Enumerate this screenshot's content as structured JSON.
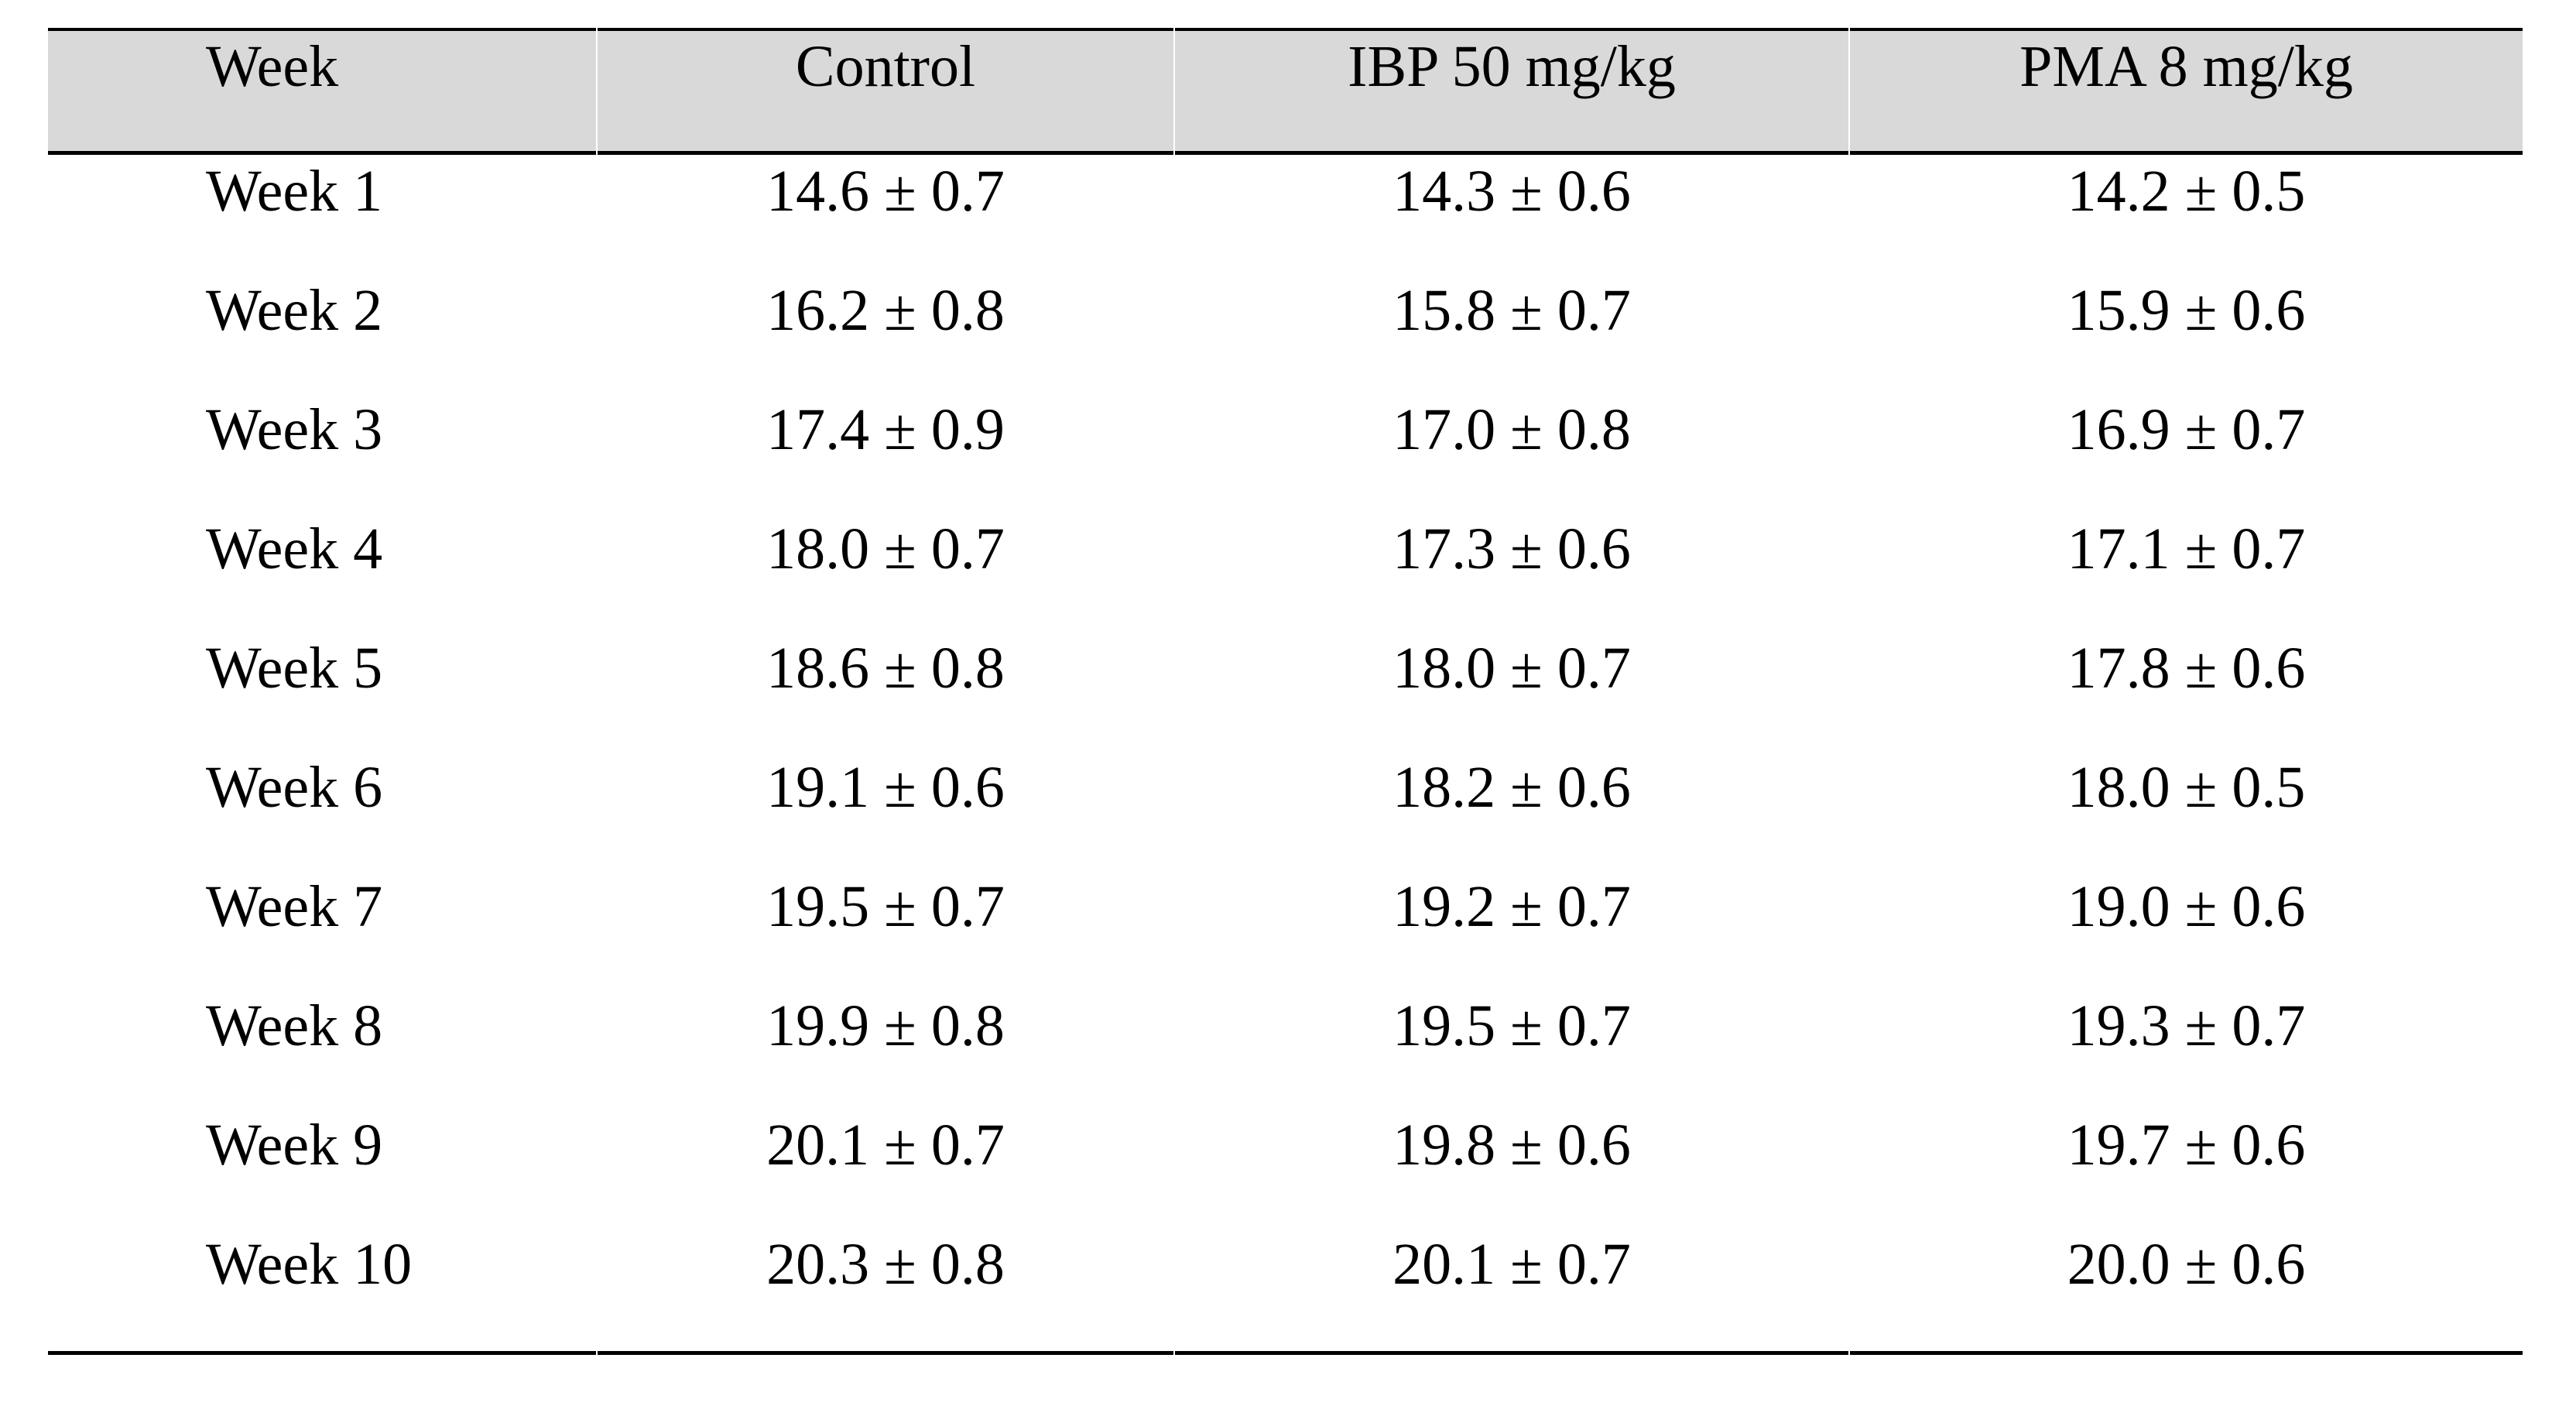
{
  "table": {
    "columns": [
      "Week",
      "Control",
      "IBP 50 mg/kg",
      "PMA 8 mg/kg"
    ],
    "rows": [
      [
        "Week 1",
        "14.6 ± 0.7",
        "14.3 ± 0.6",
        "14.2 ± 0.5"
      ],
      [
        "Week 2",
        "16.2 ± 0.8",
        "15.8 ± 0.7",
        "15.9 ± 0.6"
      ],
      [
        "Week 3",
        "17.4 ± 0.9",
        "17.0 ± 0.8",
        "16.9 ± 0.7"
      ],
      [
        "Week 4",
        "18.0 ± 0.7",
        "17.3 ± 0.6",
        "17.1 ± 0.7"
      ],
      [
        "Week 5",
        "18.6 ± 0.8",
        "18.0 ± 0.7",
        "17.8 ± 0.6"
      ],
      [
        "Week 6",
        "19.1 ± 0.6",
        "18.2 ± 0.6",
        "18.0 ± 0.5"
      ],
      [
        "Week 7",
        "19.5 ± 0.7",
        "19.2 ± 0.7",
        "19.0 ± 0.6"
      ],
      [
        "Week 8",
        "19.9 ± 0.8",
        "19.5 ± 0.7",
        "19.3 ± 0.7"
      ],
      [
        "Week 9",
        "20.1 ± 0.7",
        "19.8 ± 0.6",
        "19.7 ± 0.6"
      ],
      [
        "Week 10",
        "20.3 ± 0.8",
        "20.1 ± 0.7",
        "20.0 ± 0.6"
      ]
    ],
    "colors": {
      "header_bg": "#d9d9d9",
      "border": "#000000",
      "text": "#000000",
      "page_bg": "#ffffff"
    }
  },
  "chart_data": {
    "type": "table",
    "categories": [
      "Week 1",
      "Week 2",
      "Week 3",
      "Week 4",
      "Week 5",
      "Week 6",
      "Week 7",
      "Week 8",
      "Week 9",
      "Week 10"
    ],
    "series": [
      {
        "name": "Control",
        "mean": [
          14.6,
          16.2,
          17.4,
          18.0,
          18.6,
          19.1,
          19.5,
          19.9,
          20.1,
          20.3
        ],
        "sd": [
          0.7,
          0.8,
          0.9,
          0.7,
          0.8,
          0.6,
          0.7,
          0.8,
          0.7,
          0.8
        ]
      },
      {
        "name": "IBP 50 mg/kg",
        "mean": [
          14.3,
          15.8,
          17.0,
          17.3,
          18.0,
          18.2,
          19.2,
          19.5,
          19.8,
          20.1
        ],
        "sd": [
          0.6,
          0.7,
          0.8,
          0.6,
          0.7,
          0.6,
          0.7,
          0.7,
          0.6,
          0.7
        ]
      },
      {
        "name": "PMA 8 mg/kg",
        "mean": [
          14.2,
          15.9,
          16.9,
          17.1,
          17.8,
          18.0,
          19.0,
          19.3,
          19.7,
          20.0
        ],
        "sd": [
          0.5,
          0.6,
          0.7,
          0.7,
          0.6,
          0.5,
          0.6,
          0.7,
          0.6,
          0.6
        ]
      }
    ]
  }
}
